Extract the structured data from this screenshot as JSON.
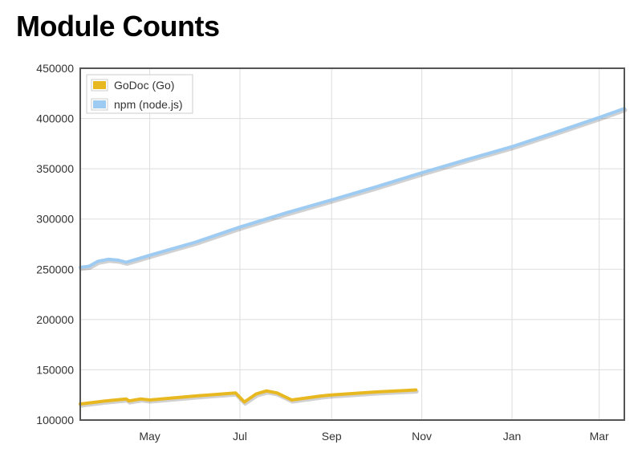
{
  "page": {
    "title": "Module Counts"
  },
  "chart_data": {
    "type": "line",
    "title": "Module Counts",
    "xlabel": "",
    "ylabel": "",
    "ylim": [
      100000,
      450000
    ],
    "xlim": [
      "2013-03-15",
      "2014-03-18"
    ],
    "y_ticks": [
      100000,
      150000,
      200000,
      250000,
      300000,
      350000,
      400000,
      450000
    ],
    "y_tick_labels": [
      "100000",
      "150000",
      "200000",
      "250000",
      "300000",
      "350000",
      "400000",
      "450000"
    ],
    "x_ticks": [
      "2013-05-01",
      "2013-07-01",
      "2013-09-01",
      "2013-11-01",
      "2014-01-01",
      "2014-03-01"
    ],
    "x_tick_labels": [
      "May",
      "Jul",
      "Sep",
      "Nov",
      "Jan",
      "Mar"
    ],
    "grid": true,
    "legend_position": "top-left",
    "series": [
      {
        "name": "GoDoc (Go)",
        "color": "#e8b820",
        "points": [
          [
            "2013-03-15",
            116000
          ],
          [
            "2013-04-01",
            119000
          ],
          [
            "2013-04-15",
            121000
          ],
          [
            "2013-04-17",
            119000
          ],
          [
            "2013-04-25",
            121000
          ],
          [
            "2013-05-01",
            120000
          ],
          [
            "2013-06-01",
            124000
          ],
          [
            "2013-06-28",
            127000
          ],
          [
            "2013-07-04",
            118000
          ],
          [
            "2013-07-12",
            126000
          ],
          [
            "2013-07-19",
            129000
          ],
          [
            "2013-07-26",
            127000
          ],
          [
            "2013-08-05",
            120000
          ],
          [
            "2013-08-15",
            122000
          ],
          [
            "2013-08-25",
            124000
          ],
          [
            "2013-09-01",
            125000
          ],
          [
            "2013-10-01",
            128000
          ],
          [
            "2013-10-28",
            130000
          ]
        ]
      },
      {
        "name": "npm (node.js)",
        "color": "#9ecbf2",
        "points": [
          [
            "2013-03-15",
            252000
          ],
          [
            "2013-03-21",
            253000
          ],
          [
            "2013-03-27",
            258000
          ],
          [
            "2013-04-03",
            260000
          ],
          [
            "2013-04-10",
            259000
          ],
          [
            "2013-04-15",
            257000
          ],
          [
            "2013-04-22",
            260000
          ],
          [
            "2013-05-01",
            264000
          ],
          [
            "2013-06-01",
            277000
          ],
          [
            "2013-07-01",
            292000
          ],
          [
            "2013-08-01",
            306000
          ],
          [
            "2013-09-01",
            319000
          ],
          [
            "2013-10-01",
            332000
          ],
          [
            "2013-11-01",
            346000
          ],
          [
            "2013-12-01",
            359000
          ],
          [
            "2014-01-01",
            372000
          ],
          [
            "2014-02-01",
            387000
          ],
          [
            "2014-03-01",
            401000
          ],
          [
            "2014-03-18",
            410000
          ]
        ]
      }
    ]
  }
}
